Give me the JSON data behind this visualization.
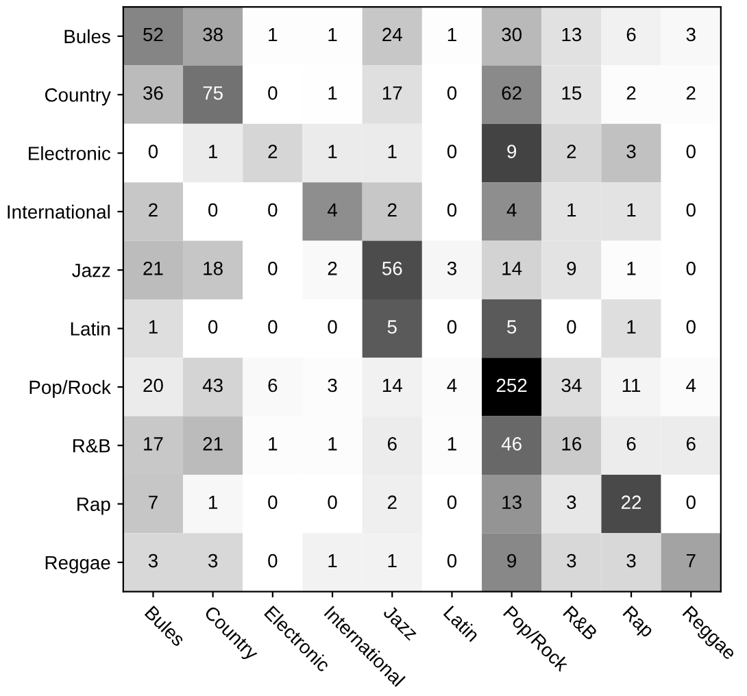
{
  "chart_data": {
    "type": "heatmap",
    "data_labels": true,
    "categories": [
      "Bules",
      "Country",
      "Electronic",
      "International",
      "Jazz",
      "Latin",
      "Pop/Rock",
      "R&B",
      "Rap",
      "Reggae"
    ],
    "y_categories": [
      "Bules",
      "Country",
      "Electronic",
      "International",
      "Jazz",
      "Latin",
      "Pop/Rock",
      "R&B",
      "Rap",
      "Reggae"
    ],
    "cells": [
      [
        52,
        38,
        1,
        1,
        24,
        1,
        30,
        13,
        6,
        3
      ],
      [
        36,
        75,
        0,
        1,
        17,
        0,
        62,
        15,
        2,
        2
      ],
      [
        0,
        1,
        2,
        1,
        1,
        0,
        9,
        2,
        3,
        0
      ],
      [
        2,
        0,
        0,
        4,
        2,
        0,
        4,
        1,
        1,
        0
      ],
      [
        21,
        18,
        0,
        2,
        56,
        3,
        14,
        9,
        1,
        0
      ],
      [
        1,
        0,
        0,
        0,
        5,
        0,
        5,
        0,
        1,
        0
      ],
      [
        20,
        43,
        6,
        3,
        14,
        4,
        252,
        34,
        11,
        4
      ],
      [
        17,
        21,
        1,
        1,
        6,
        1,
        46,
        16,
        6,
        6
      ],
      [
        7,
        1,
        0,
        0,
        2,
        0,
        13,
        3,
        22,
        0
      ],
      [
        3,
        3,
        0,
        1,
        1,
        0,
        9,
        3,
        3,
        7
      ]
    ]
  }
}
